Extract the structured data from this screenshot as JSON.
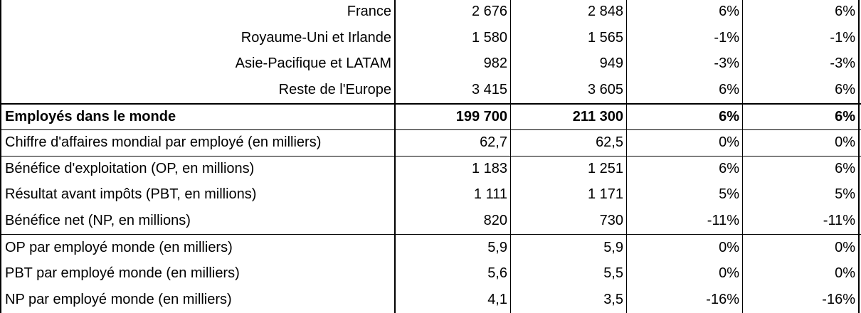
{
  "table": {
    "rows": [
      {
        "label": "France",
        "v1": "2 676",
        "v2": "2 848",
        "p1": "6%",
        "p2": "6%"
      },
      {
        "label": "Royaume-Uni et Irlande",
        "v1": "1 580",
        "v2": "1 565",
        "p1": "-1%",
        "p2": "-1%"
      },
      {
        "label": "Asie-Pacifique et LATAM",
        "v1": "982",
        "v2": "949",
        "p1": "-3%",
        "p2": "-3%"
      },
      {
        "label": "Reste de l'Europe",
        "v1": "3 415",
        "v2": "3 605",
        "p1": "6%",
        "p2": "6%"
      },
      {
        "label": "Employés dans le monde",
        "v1": "199 700",
        "v2": "211 300",
        "p1": "6%",
        "p2": "6%"
      },
      {
        "label": "Chiffre d'affaires mondial par employé (en milliers)",
        "v1": "62,7",
        "v2": "62,5",
        "p1": "0%",
        "p2": "0%"
      },
      {
        "label": "Bénéfice d'exploitation (OP, en millions)",
        "v1": "1 183",
        "v2": "1 251",
        "p1": "6%",
        "p2": "6%"
      },
      {
        "label": "Résultat avant impôts (PBT, en millions)",
        "v1": "1 111",
        "v2": "1 171",
        "p1": "5%",
        "p2": "5%"
      },
      {
        "label": "Bénéfice net (NP, en millions)",
        "v1": "820",
        "v2": "730",
        "p1": "-11%",
        "p2": "-11%"
      },
      {
        "label": "OP par employé monde (en milliers)",
        "v1": "5,9",
        "v2": "5,9",
        "p1": "0%",
        "p2": "0%"
      },
      {
        "label": "PBT par employé monde (en milliers)",
        "v1": "5,6",
        "v2": "5,5",
        "p1": "0%",
        "p2": "0%"
      },
      {
        "label": "NP par employé monde (en milliers)",
        "v1": "4,1",
        "v2": "3,5",
        "p1": "-16%",
        "p2": "-16%"
      }
    ]
  }
}
